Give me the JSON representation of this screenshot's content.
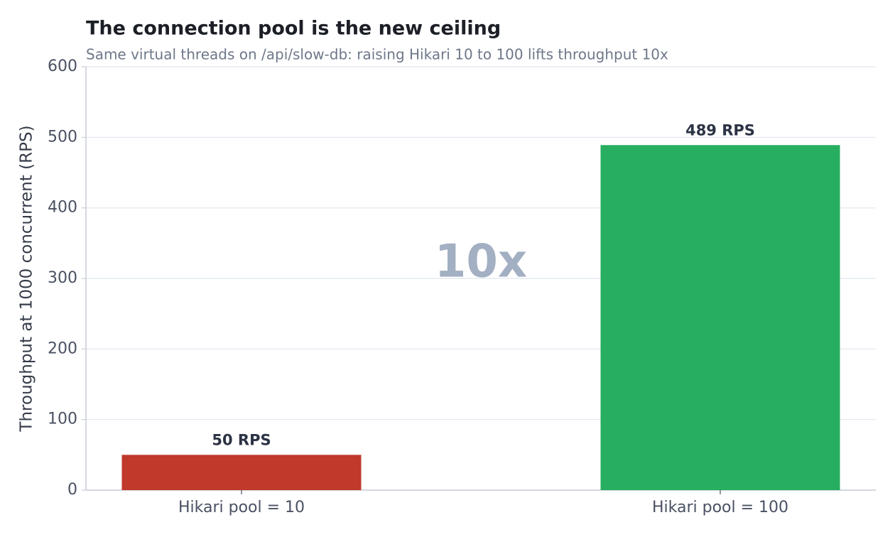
{
  "chart_data": {
    "type": "bar",
    "title": "The connection pool is the new ceiling",
    "subtitle": "Same virtual threads on /api/slow-db: raising Hikari 10 to 100 lifts throughput 10x",
    "y_label": "Throughput at 1000 concurrent (RPS)",
    "categories": [
      "Hikari pool = 10",
      "Hikari pool = 100"
    ],
    "values": [
      50,
      489
    ],
    "value_labels": [
      "50 RPS",
      "489 RPS"
    ],
    "colors": [
      "#c0392b",
      "#27ae60"
    ],
    "annotation": "10x",
    "ylim": [
      0,
      600
    ],
    "yticks": [
      0,
      100,
      200,
      300,
      400,
      500,
      600
    ],
    "grid": true
  }
}
